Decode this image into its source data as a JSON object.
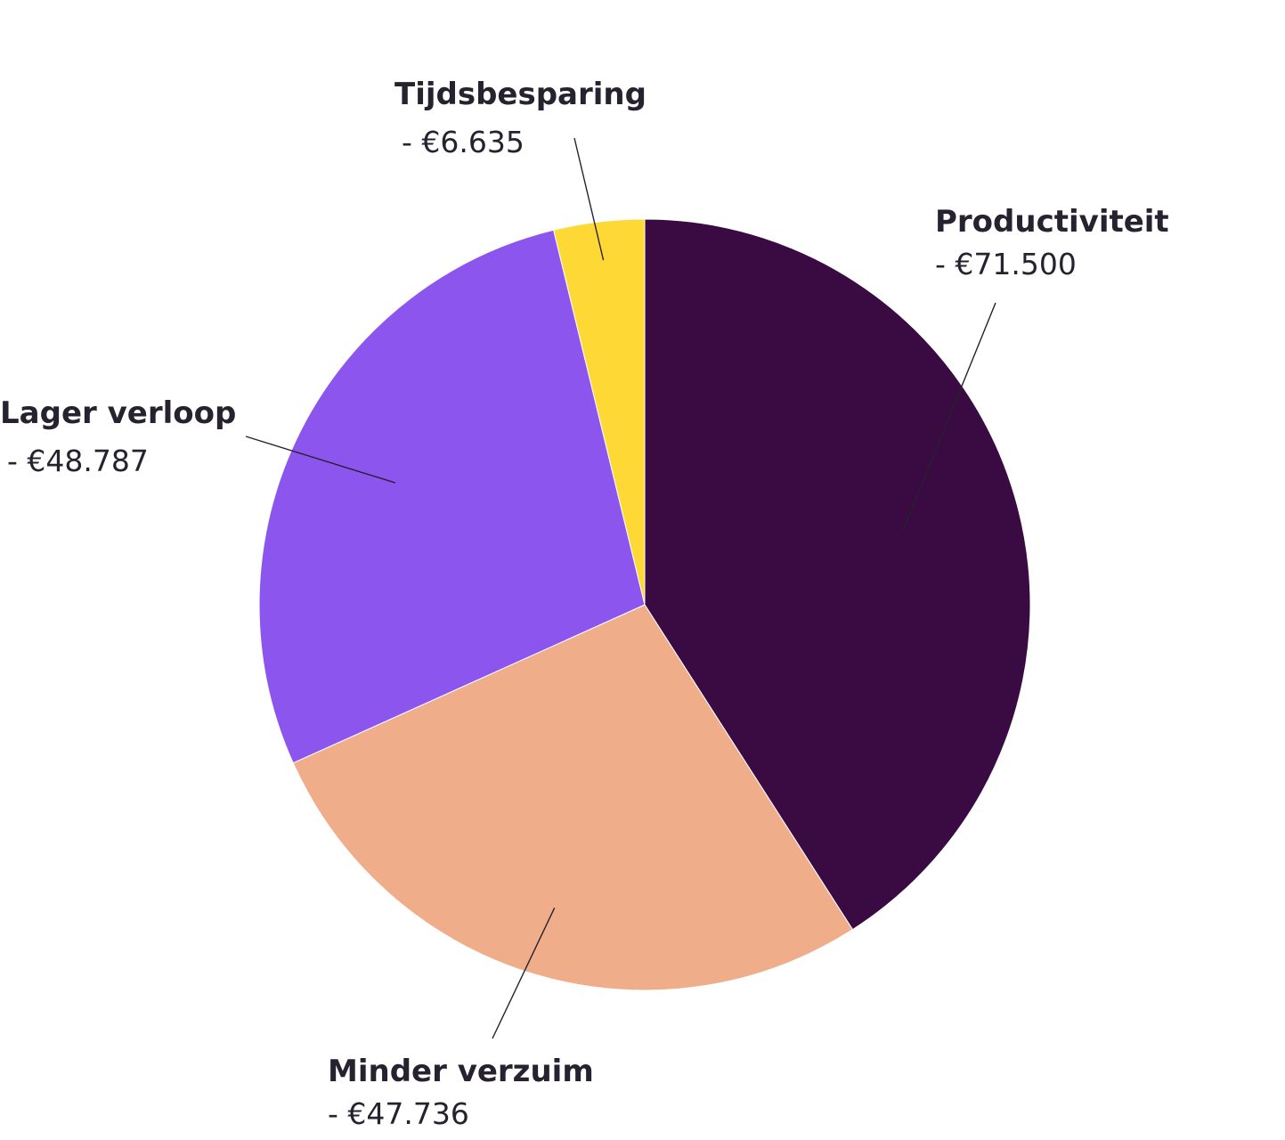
{
  "chart_data": {
    "type": "pie",
    "slices": [
      {
        "name": "Productiviteit",
        "value_label": "- €71.500",
        "value": 71500,
        "color": "#3a0a42"
      },
      {
        "name": "Minder verzuim",
        "value_label": "- €47.736",
        "value": 47736,
        "color": "#f0ad8a"
      },
      {
        "name": "Lager verloop",
        "value_label": "- €48.787",
        "value": 48787,
        "color": "#8c56ee"
      },
      {
        "name": "Tijdsbesparing",
        "value_label": "- €6.635",
        "value": 6635,
        "color": "#fed936"
      }
    ],
    "start": "12 o'clock",
    "direction": "clockwise",
    "legend": "none"
  }
}
